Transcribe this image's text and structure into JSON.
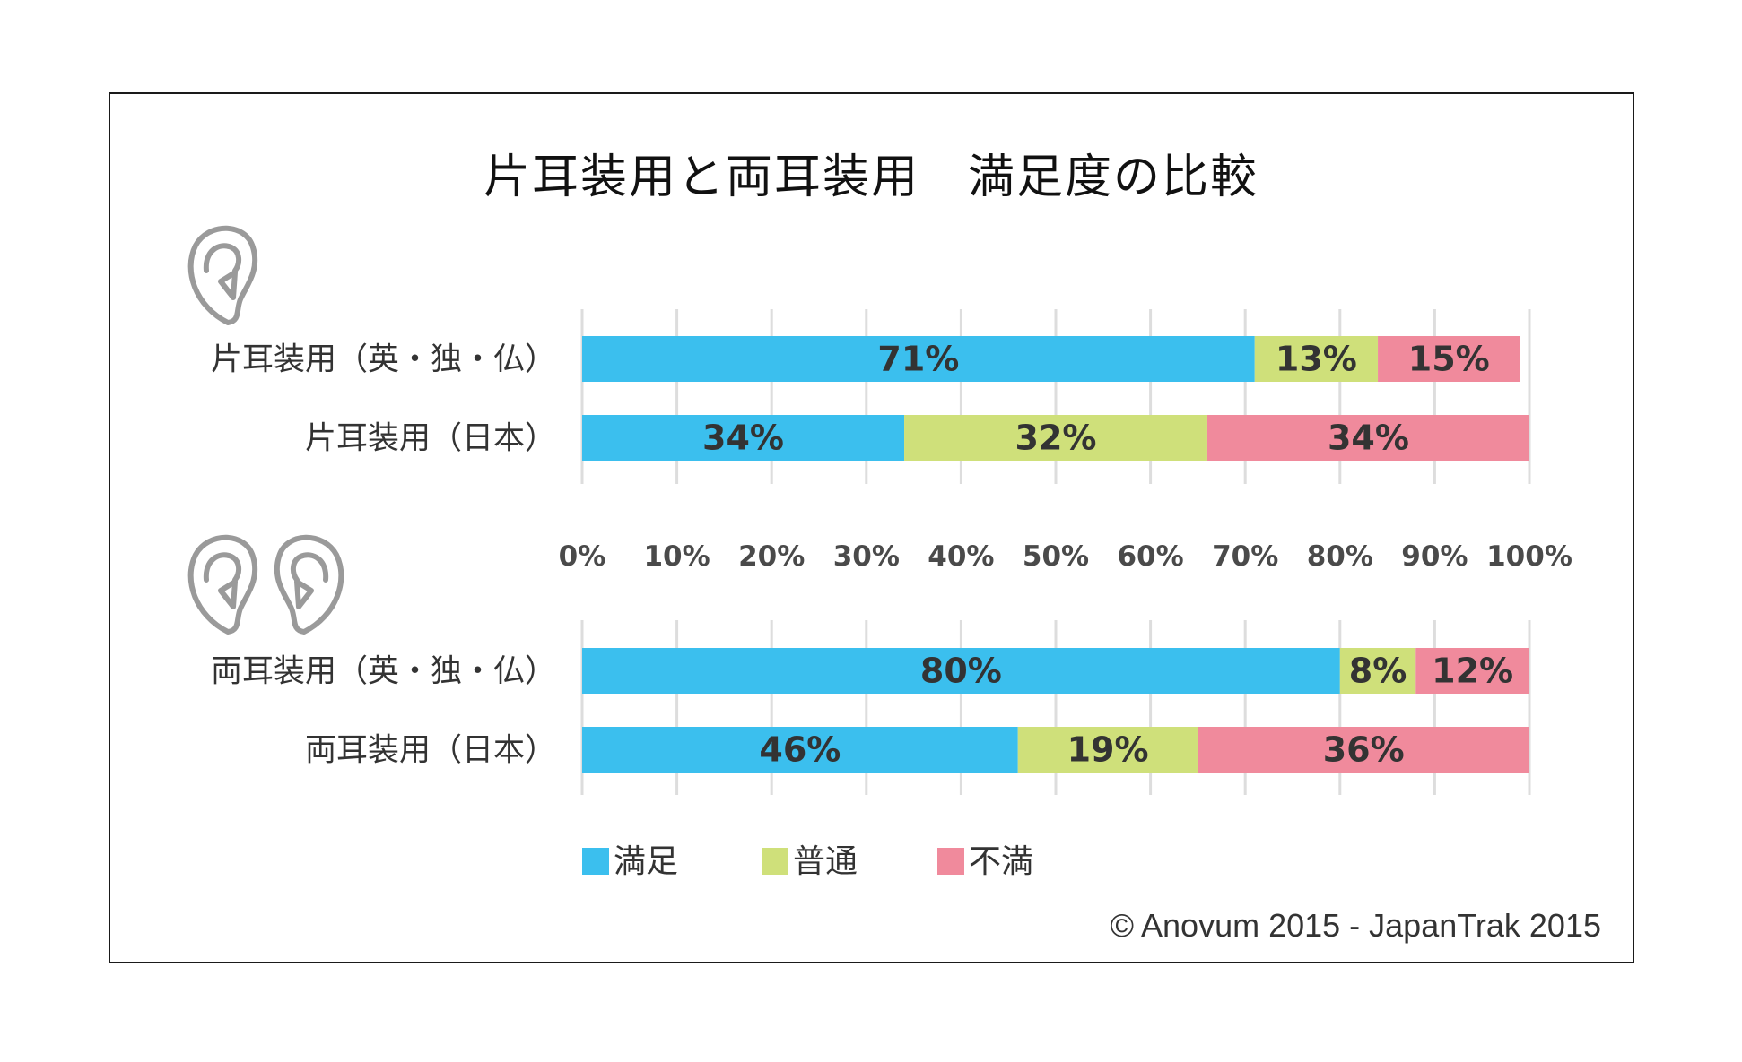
{
  "title": "片耳装用と両耳装用　満足度の比較",
  "copyright": "© Anovum 2015 - JapanTrak 2015",
  "colors": {
    "satisfied": "#3bbfee",
    "neutral": "#cfe07a",
    "dissatisfied": "#f08a9c",
    "grid": "#dddddd"
  },
  "icons": {
    "single": "ear-icon",
    "pair": "two-ears-icon"
  },
  "chart_data": {
    "type": "bar",
    "orientation": "horizontal",
    "stacked": true,
    "xlim": [
      0,
      100
    ],
    "ticks": [
      "0%",
      "10%",
      "20%",
      "30%",
      "40%",
      "50%",
      "60%",
      "70%",
      "80%",
      "90%",
      "100%"
    ],
    "series_names": [
      "満足",
      "普通",
      "不満"
    ],
    "groups": [
      {
        "icon": "ear-icon",
        "bars": [
          {
            "label": "片耳装用（英・独・仏）",
            "values": [
              71,
              13,
              15
            ],
            "labels": [
              "71%",
              "13%",
              "15%"
            ]
          },
          {
            "label": "片耳装用（日本）",
            "values": [
              34,
              32,
              34
            ],
            "labels": [
              "34%",
              "32%",
              "34%"
            ]
          }
        ]
      },
      {
        "icon": "two-ears-icon",
        "bars": [
          {
            "label": "両耳装用（英・独・仏）",
            "values": [
              80,
              8,
              12
            ],
            "labels": [
              "80%",
              "8%",
              "12%"
            ]
          },
          {
            "label": "両耳装用（日本）",
            "values": [
              46,
              19,
              36
            ],
            "labels": [
              "46%",
              "19%",
              "36%"
            ]
          }
        ]
      }
    ],
    "legend": {
      "position": "bottom",
      "items": [
        "満足",
        "普通",
        "不満"
      ]
    }
  }
}
